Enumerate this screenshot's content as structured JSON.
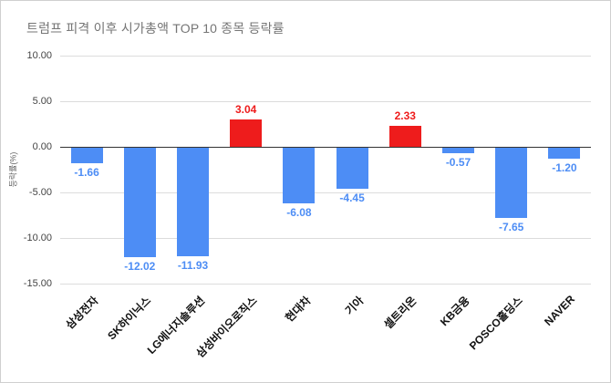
{
  "chart_data": {
    "type": "bar",
    "title": "트럼프 피격 이후  시가총액 TOP 10 종목 등락률",
    "xlabel": "",
    "ylabel": "등락률(%)",
    "categories": [
      "삼성전자",
      "SK하이닉스",
      "LG에너지솔루션",
      "삼성바이오로직스",
      "현대차",
      "기아",
      "셀트리온",
      "KB금융",
      "POSCO홀딩스",
      "NAVER"
    ],
    "values": [
      -1.66,
      -12.02,
      -11.93,
      3.04,
      -6.08,
      -4.45,
      2.33,
      -0.57,
      -7.65,
      -1.2
    ],
    "value_labels": [
      "-1.66",
      "-12.02",
      "-11.93",
      "3.04",
      "-6.08",
      "-4.45",
      "2.33",
      "-0.57",
      "-7.65",
      "-1.20"
    ],
    "ylim": [
      -15,
      10
    ],
    "yticks": [
      10,
      5,
      0,
      -5,
      -10,
      -15
    ],
    "ytick_labels": [
      "10.00",
      "5.00",
      "0.00",
      "-5.00",
      "-10.00",
      "-15.00"
    ],
    "grid": true,
    "legend_position": "none",
    "colors": {
      "positive": "#ee1c1c",
      "negative": "#4d8df5",
      "grid": "#dcdcdc",
      "zero_line": "#333333",
      "title_text": "#757575",
      "tick_text": "#444444",
      "category_text": "#111111"
    }
  }
}
